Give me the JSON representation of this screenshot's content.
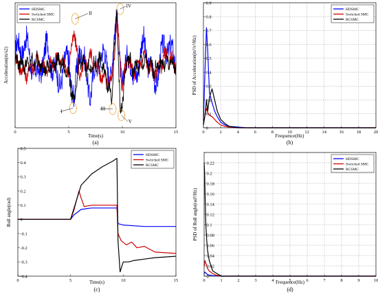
{
  "chart_data": [
    {
      "id": "a",
      "type": "line",
      "caption": "(a)",
      "xlabel": "Time(s)",
      "ylabel": "Acceleration(m/s2)",
      "xlim": [
        0,
        15
      ],
      "ylim": [
        -7,
        7
      ],
      "xticks": [
        0,
        5,
        10,
        15
      ],
      "grid": false,
      "legend_position": "top-left",
      "annotations": [
        "II",
        "IV",
        "I",
        "III",
        "V"
      ],
      "series": [
        {
          "name": "HDSMC",
          "color": "#0000ff",
          "style": "noisy",
          "x": [
            0,
            1,
            2,
            3,
            4,
            5,
            5.5,
            6,
            7,
            8,
            9,
            9.5,
            10,
            10.5,
            11,
            12,
            13,
            14,
            15
          ],
          "y": [
            1.5,
            2.5,
            -1.5,
            2,
            -2,
            1,
            -4.5,
            2.5,
            -3,
            1.5,
            -1,
            6,
            -3.5,
            2.5,
            -2,
            2.5,
            -2,
            2.5,
            0.5
          ]
        },
        {
          "name": "Switched SMC",
          "color": "#cc0000",
          "style": "noisy",
          "x": [
            0,
            1,
            2,
            3,
            4,
            5,
            5.5,
            6,
            7,
            8,
            9,
            9.5,
            10,
            10.5,
            11,
            12,
            13,
            14,
            15
          ],
          "y": [
            0.5,
            -1,
            0.5,
            -0.5,
            1,
            -0.5,
            4,
            -1,
            1,
            -1,
            -2,
            5,
            -2.5,
            1,
            -1,
            1,
            -1,
            1,
            0
          ]
        },
        {
          "name": "RCSMC",
          "color": "#000000",
          "style": "noisy",
          "x": [
            0,
            1,
            2,
            3,
            4,
            5,
            5.5,
            6,
            7,
            8,
            9,
            9.5,
            9.8,
            10.5,
            11,
            12,
            13,
            14,
            15
          ],
          "y": [
            0.5,
            0,
            0.5,
            -0.5,
            0.5,
            -1,
            -4.5,
            0.5,
            -0.5,
            0.5,
            -3.5,
            6.5,
            -6,
            1,
            -0.5,
            0.5,
            -0.5,
            0.5,
            0
          ]
        }
      ]
    },
    {
      "id": "b",
      "type": "line",
      "caption": "(b)",
      "xlabel": "Frequence(Hz)",
      "ylabel": "PSD of Acceleration(m²/s³/Hz)",
      "xlim": [
        0,
        20
      ],
      "ylim": [
        0,
        0.9
      ],
      "xticks": [
        0,
        2,
        4,
        6,
        8,
        10,
        12,
        14,
        16,
        18,
        20
      ],
      "yticks": [
        0,
        0.1,
        0.2,
        0.3,
        0.4,
        0.5,
        0.6,
        0.7,
        0.8,
        0.9
      ],
      "ytick_labels": [
        "0",
        "0.1",
        "0.2",
        "0.3",
        "0.4",
        "0.5",
        "0.6",
        "0.7",
        "0.8",
        "0.9"
      ],
      "grid": true,
      "legend_position": "top-right",
      "series": [
        {
          "name": "HDSMC",
          "color": "#0000ff",
          "x": [
            0,
            0.2,
            0.35,
            0.5,
            0.7,
            1,
            1.3,
            1.6,
            2,
            2.5,
            3,
            4,
            5,
            20
          ],
          "y": [
            0.05,
            0.45,
            0.72,
            0.55,
            0.25,
            0.18,
            0.12,
            0.08,
            0.04,
            0.02,
            0.01,
            0.005,
            0,
            0
          ]
        },
        {
          "name": "Switched SMC",
          "color": "#cc0000",
          "x": [
            0,
            0.2,
            0.35,
            0.5,
            0.7,
            1,
            1.3,
            1.6,
            2,
            2.5,
            3,
            4,
            20
          ],
          "y": [
            0.02,
            0.1,
            0.14,
            0.11,
            0.09,
            0.08,
            0.06,
            0.04,
            0.02,
            0.01,
            0.005,
            0,
            0
          ]
        },
        {
          "name": "RCSMC",
          "color": "#000000",
          "x": [
            0,
            0.2,
            0.35,
            0.5,
            0.7,
            1,
            1.3,
            1.6,
            2,
            2.5,
            3,
            4,
            20
          ],
          "y": [
            0.02,
            0.1,
            0.2,
            0.12,
            0.22,
            0.28,
            0.2,
            0.12,
            0.06,
            0.03,
            0.01,
            0,
            0
          ]
        }
      ]
    },
    {
      "id": "c",
      "type": "line",
      "caption": "(c)",
      "xlabel": "Time(s)",
      "ylabel": "Roll angle(rad)",
      "xlim": [
        0,
        15
      ],
      "ylim": [
        -0.4,
        0.5
      ],
      "xticks": [
        0,
        5,
        10,
        15
      ],
      "yticks": [
        -0.4,
        -0.3,
        -0.2,
        -0.1,
        0,
        0.1,
        0.2,
        0.3,
        0.4,
        0.5
      ],
      "ytick_labels": [
        "-0.4",
        "-0.3",
        "-0.2",
        "-0.1",
        "0",
        "0.1",
        "0.2",
        "0.3",
        "0.4",
        "0.5"
      ],
      "grid": false,
      "legend_position": "top-right",
      "series": [
        {
          "name": "HDSMC",
          "color": "#0000ff",
          "x": [
            0,
            5,
            5.3,
            6,
            7,
            8,
            9,
            9.4,
            9.5,
            10,
            12,
            15
          ],
          "y": [
            0,
            0,
            0.03,
            0.07,
            0.08,
            0.08,
            0.08,
            0.08,
            -0.03,
            -0.04,
            -0.05,
            -0.05
          ]
        },
        {
          "name": "Switched SMC",
          "color": "#cc0000",
          "x": [
            0,
            5,
            5.3,
            5.8,
            6,
            6.3,
            7,
            8,
            9,
            9.4,
            9.5,
            9.8,
            10.3,
            10.8,
            11.3,
            12,
            13,
            15
          ],
          "y": [
            0,
            0,
            0.06,
            0.2,
            0.15,
            0.09,
            0.1,
            0.1,
            0.1,
            0.1,
            -0.1,
            -0.15,
            -0.18,
            -0.16,
            -0.2,
            -0.19,
            -0.23,
            -0.24
          ]
        },
        {
          "name": "RCSMC",
          "color": "#000000",
          "x": [
            0,
            5,
            5.5,
            6,
            7,
            8,
            9,
            9.4,
            9.5,
            9.7,
            10,
            10.5,
            11,
            12,
            13,
            15
          ],
          "y": [
            0,
            0,
            0.12,
            0.24,
            0.32,
            0.37,
            0.41,
            0.43,
            -0.15,
            -0.37,
            -0.3,
            -0.3,
            -0.29,
            -0.28,
            -0.27,
            -0.26
          ]
        }
      ]
    },
    {
      "id": "d",
      "type": "line",
      "caption": "(d)",
      "xlabel": "Frequence(Hz)",
      "ylabel": "PSD of Roll angle(rad²/Hz)",
      "xlim": [
        0,
        10
      ],
      "ylim": [
        0,
        0.24
      ],
      "xticks": [
        0,
        1,
        2,
        3,
        4,
        5,
        6,
        7,
        8,
        9,
        10
      ],
      "yticks": [
        0,
        0.02,
        0.04,
        0.06,
        0.08,
        0.1,
        0.12,
        0.14,
        0.16,
        0.18,
        0.2,
        0.22,
        0.24
      ],
      "ytick_labels": [
        "0",
        "0.02",
        "0.04",
        "0.06",
        "0.08",
        "0.1",
        "0.12",
        "0.14",
        "0.16",
        "0.18",
        "0.2",
        "0.22",
        ""
      ],
      "grid": true,
      "legend_position": "top-right",
      "series": [
        {
          "name": "HDSMC",
          "color": "#0000ff",
          "x": [
            0,
            0.05,
            0.1,
            0.2,
            0.3,
            0.5,
            1,
            10
          ],
          "y": [
            0.005,
            0.008,
            0.006,
            0.003,
            0.002,
            0.001,
            0,
            0
          ]
        },
        {
          "name": "Switched SMC",
          "color": "#cc0000",
          "x": [
            0,
            0.05,
            0.1,
            0.2,
            0.3,
            0.5,
            0.7,
            1,
            10
          ],
          "y": [
            0.02,
            0.03,
            0.025,
            0.015,
            0.01,
            0.005,
            0.002,
            0,
            0
          ]
        },
        {
          "name": "RCSMC",
          "color": "#000000",
          "x": [
            0,
            0.03,
            0.06,
            0.1,
            0.15,
            0.2,
            0.3,
            0.5,
            1,
            10
          ],
          "y": [
            0.22,
            0.2,
            0.15,
            0.1,
            0.07,
            0.05,
            0.03,
            0.01,
            0,
            0
          ]
        }
      ]
    }
  ]
}
